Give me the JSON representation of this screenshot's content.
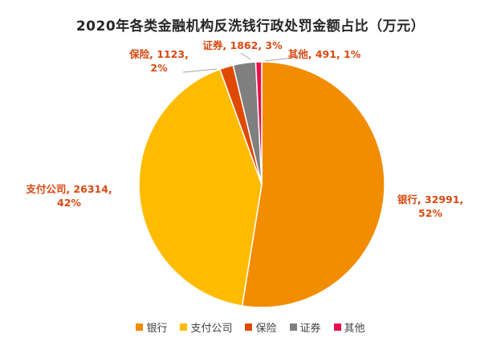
{
  "chart_data": {
    "type": "pie",
    "title": "2020年各类金融机构反洗钱行政处罚金额占比（万元）",
    "categories": [
      "银行",
      "支付公司",
      "保险",
      "证券",
      "其他"
    ],
    "values": [
      32991,
      26314,
      1123,
      1862,
      491
    ],
    "percent_labels": [
      "52%",
      "42%",
      "2%",
      "3%",
      "1%"
    ],
    "data_labels": [
      [
        "银行, 32991,",
        "52%"
      ],
      [
        "支付公司, 26314,",
        "42%"
      ],
      [
        "保险, 1123,",
        "2%"
      ],
      [
        "证券, 1862, 3%"
      ],
      [
        "其他, 491, 1%"
      ]
    ],
    "colors": [
      "#F28C00",
      "#FFBB00",
      "#E04A00",
      "#7F7F7F",
      "#E8104C"
    ],
    "label_color": "#D9480F",
    "start_angle_deg": 0,
    "direction": "clockwise",
    "legend_position": "bottom"
  }
}
